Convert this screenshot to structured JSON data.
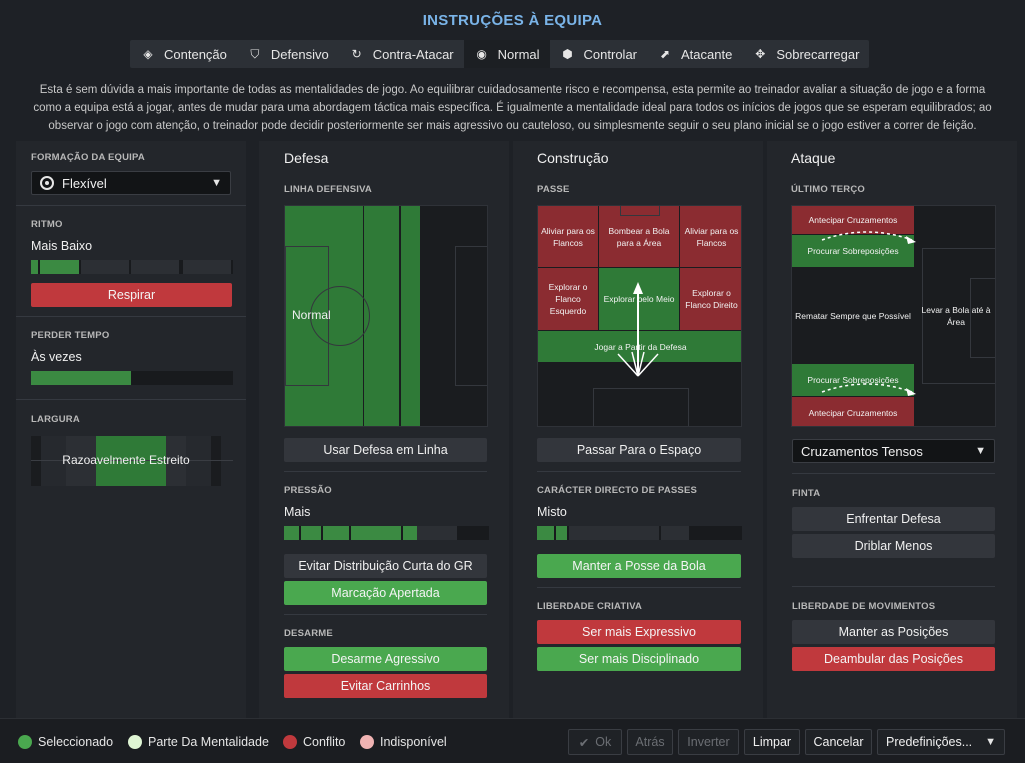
{
  "title": "INSTRUÇÕES À EQUIPA",
  "tabs": [
    {
      "label": "Contenção",
      "icon": "shield-wings-icon"
    },
    {
      "label": "Defensivo",
      "icon": "shield-icon"
    },
    {
      "label": "Contra-Atacar",
      "icon": "counter-icon"
    },
    {
      "label": "Normal",
      "icon": "ball-icon"
    },
    {
      "label": "Controlar",
      "icon": "control-icon"
    },
    {
      "label": "Atacante",
      "icon": "arrow-attack-icon"
    },
    {
      "label": "Sobrecarregar",
      "icon": "overload-icon"
    }
  ],
  "active_tab": "Normal",
  "description": "Esta é sem dúvida a mais importante de todas as mentalidades de jogo.  Ao equilibrar cuidadosamente risco e recompensa, esta permite ao treinador avaliar a situação de jogo e a forma como a equipa está a jogar, antes de mudar para uma abordagem táctica mais específica. É igualmente a mentalidade ideal para todos os inícios de jogos que se esperam equilibrados; ao observar o jogo com atenção, o treinador pode decidir posteriormente ser mais agressivo ou cauteloso, ou simplesmente seguir o seu plano inicial se o jogo estiver a correr de feição.",
  "left": {
    "formation_label": "FORMAÇÃO DA EQUIPA",
    "formation_value": "Flexível",
    "tempo_label": "RITMO",
    "tempo_value": "Mais Baixo",
    "tempo_level": 0.25,
    "tempo_button": "Respirar",
    "timewasting_label": "PERDER TEMPO",
    "timewasting_value": "Às vezes",
    "timewasting_level": 0.5,
    "width_label": "LARGURA",
    "width_value": "Razoavelmente Estreito"
  },
  "defense": {
    "heading": "Defesa",
    "line_label": "LINHA DEFENSIVA",
    "line_value": "Normal",
    "line_button": "Usar Defesa em Linha",
    "press_label": "PRESSÃO",
    "press_value": "Mais",
    "press_level": 0.65,
    "press_buttons": [
      "Evitar Distribuição Curta do GR",
      "Marcação Apertada"
    ],
    "tackle_label": "DESARME",
    "tackle_buttons": [
      "Desarme Agressivo",
      "Evitar Carrinhos"
    ]
  },
  "buildup": {
    "heading": "Construção",
    "pass_label": "PASSE",
    "cells": {
      "clear_left": "Aliviar para os Flancos",
      "lob": "Bombear a Bola para a Área",
      "clear_right": "Aliviar para os Flancos",
      "exploit_left": "Explorar o Flanco Esquerdo",
      "exploit_middle": "Explorar pelo Meio",
      "exploit_right": "Explorar o Flanco Direito",
      "play_out": "Jogar a Partir da Defesa"
    },
    "space_button": "Passar Para o Espaço",
    "directness_label": "CARÁCTER DIRECTO DE PASSES",
    "directness_value": "Misto",
    "directness_level": 0.1,
    "possession_button": "Manter a Posse da Bola",
    "creative_label": "LIBERDADE CRIATIVA",
    "creative_buttons": [
      "Ser mais Expressivo",
      "Ser mais Disciplinado"
    ]
  },
  "attack": {
    "heading": "Ataque",
    "final_label": "ÚLTIMO TERÇO",
    "cells": {
      "early_top": "Antecipar Cruzamentos",
      "overlap_top": "Procurar Sobreposições",
      "shoot": "Rematar Sempre que Possível",
      "work_ball": "Levar a Bola até à Área",
      "overlap_bottom": "Procurar Sobreposições",
      "early_bottom": "Antecipar Cruzamentos"
    },
    "cross_dropdown": "Cruzamentos Tensos",
    "finish_label": "FINTA",
    "finish_buttons": [
      "Enfrentar Defesa",
      "Driblar Menos"
    ],
    "movement_label": "LIBERDADE DE MOVIMENTOS",
    "movement_buttons": [
      "Manter as Posições",
      "Deambular das Posições"
    ]
  },
  "legend": [
    {
      "label": "Seleccionado",
      "color": "#4aa84f"
    },
    {
      "label": "Parte Da Mentalidade",
      "color": "#dff5d4"
    },
    {
      "label": "Conflito",
      "color": "#c0393d"
    },
    {
      "label": "Indisponível",
      "color": "#f0b3b3"
    }
  ],
  "footer": {
    "ok": "Ok",
    "back": "Atrás",
    "invert": "Inverter",
    "clear": "Limpar",
    "cancel": "Cancelar",
    "presets": "Predefinições..."
  }
}
